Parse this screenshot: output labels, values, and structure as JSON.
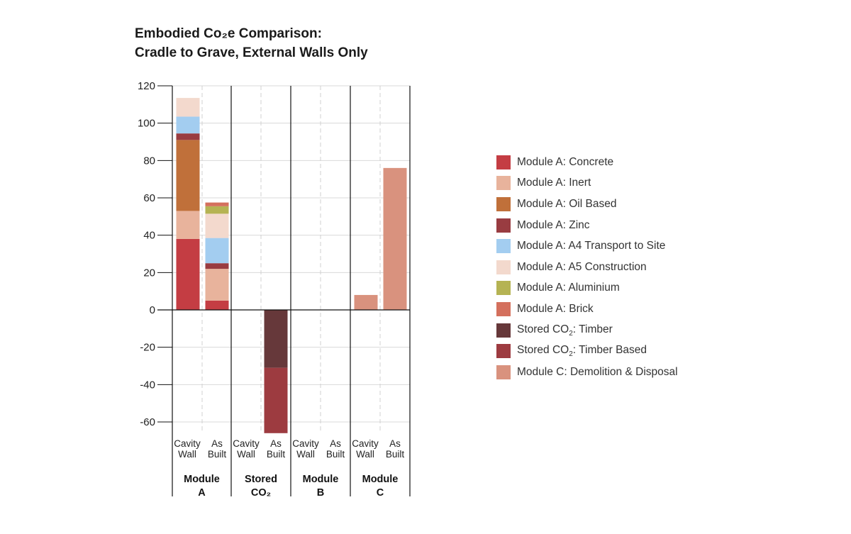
{
  "title_line1": "Embodied Co₂e Comparison:",
  "title_line2": "Cradle to Grave, External Walls Only",
  "chart_data": {
    "type": "bar",
    "stacked": true,
    "title": "Embodied Co₂e Comparison: Cradle to Grave, External Walls Only",
    "xlabel": "",
    "ylabel": "",
    "ylim": [
      -65,
      120
    ],
    "yticks": [
      120,
      100,
      80,
      60,
      40,
      20,
      0,
      -20,
      -40,
      -60
    ],
    "grid": true,
    "legend_position": "right",
    "groups": [
      {
        "label": "Module A",
        "label_lines": [
          "Module",
          "A"
        ]
      },
      {
        "label": "Stored CO₂",
        "label_lines": [
          "Stored",
          "CO₂"
        ]
      },
      {
        "label": "Module B",
        "label_lines": [
          "Module",
          "B"
        ]
      },
      {
        "label": "Module C",
        "label_lines": [
          "Module",
          "C"
        ]
      }
    ],
    "subcategories": [
      {
        "label": "Cavity Wall",
        "label_lines": [
          "Cavity",
          "Wall"
        ]
      },
      {
        "label": "As Built",
        "label_lines": [
          "As",
          "Built"
        ]
      }
    ],
    "categories": [
      "Module A / Cavity Wall",
      "Module A / As Built",
      "Stored CO₂ / Cavity Wall",
      "Stored CO₂ / As Built",
      "Module B / Cavity Wall",
      "Module B / As Built",
      "Module C / Cavity Wall",
      "Module C / As Built"
    ],
    "series": [
      {
        "name": "Module A: Concrete",
        "color": "#c43d43",
        "values": [
          38,
          5,
          0,
          0,
          0,
          0,
          0,
          0
        ]
      },
      {
        "name": "Module A: Inert",
        "color": "#e8b39c",
        "values": [
          15,
          17,
          0,
          0,
          0,
          0,
          0,
          0
        ]
      },
      {
        "name": "Module A: Oil Based",
        "color": "#c0703a",
        "values": [
          38,
          0,
          0,
          0,
          0,
          0,
          0,
          0
        ]
      },
      {
        "name": "Module A: Zinc",
        "color": "#993c41",
        "values": [
          3.5,
          3,
          0,
          0,
          0,
          0,
          0,
          0
        ]
      },
      {
        "name": "Module A: A4 Transport to Site",
        "color": "#a3cdf0",
        "values": [
          9,
          13.5,
          0,
          0,
          0,
          0,
          0,
          0
        ]
      },
      {
        "name": "Module A: A5 Construction",
        "color": "#f3d9cd",
        "values": [
          10,
          13,
          0,
          0,
          0,
          0,
          0,
          0
        ]
      },
      {
        "name": "Module A: Aluminium",
        "color": "#b5b353",
        "values": [
          0,
          4,
          0,
          0,
          0,
          0,
          0,
          0
        ]
      },
      {
        "name": "Module A: Brick",
        "color": "#d4705d",
        "values": [
          0,
          2,
          0,
          0,
          0,
          0,
          0,
          0
        ]
      },
      {
        "name": "Stored CO₂: Timber",
        "color": "#66383a",
        "values": [
          0,
          0,
          0,
          -31,
          0,
          0,
          0,
          0
        ]
      },
      {
        "name": "Stored CO₂: Timber Based",
        "color": "#9d3b40",
        "values": [
          0,
          0,
          0,
          -35,
          0,
          0,
          0,
          0
        ]
      },
      {
        "name": "Module C: Demolition & Disposal",
        "color": "#d9927e",
        "values": [
          0,
          0,
          0,
          0,
          0,
          0,
          8,
          76
        ]
      }
    ]
  },
  "legend": [
    {
      "pre": "Module A: Concrete",
      "sub": "",
      "post": "",
      "color": "#c43d43"
    },
    {
      "pre": "Module A: Inert",
      "sub": "",
      "post": "",
      "color": "#e8b39c"
    },
    {
      "pre": "Module A: Oil Based",
      "sub": "",
      "post": "",
      "color": "#c0703a"
    },
    {
      "pre": "Module A: Zinc",
      "sub": "",
      "post": "",
      "color": "#993c41"
    },
    {
      "pre": "Module A: A4 Transport to Site",
      "sub": "",
      "post": "",
      "color": "#a3cdf0"
    },
    {
      "pre": "Module A: A5 Construction",
      "sub": "",
      "post": "",
      "color": "#f3d9cd"
    },
    {
      "pre": "Module A: Aluminium",
      "sub": "",
      "post": "",
      "color": "#b5b353"
    },
    {
      "pre": "Module A: Brick",
      "sub": "",
      "post": "",
      "color": "#d4705d"
    },
    {
      "pre": "Stored CO",
      "sub": "2",
      "post": ": Timber",
      "color": "#66383a"
    },
    {
      "pre": "Stored CO",
      "sub": "2",
      "post": ": Timber Based",
      "color": "#9d3b40"
    },
    {
      "pre": "Module C: Demolition & Disposal",
      "sub": "",
      "post": "",
      "color": "#d9927e"
    }
  ]
}
